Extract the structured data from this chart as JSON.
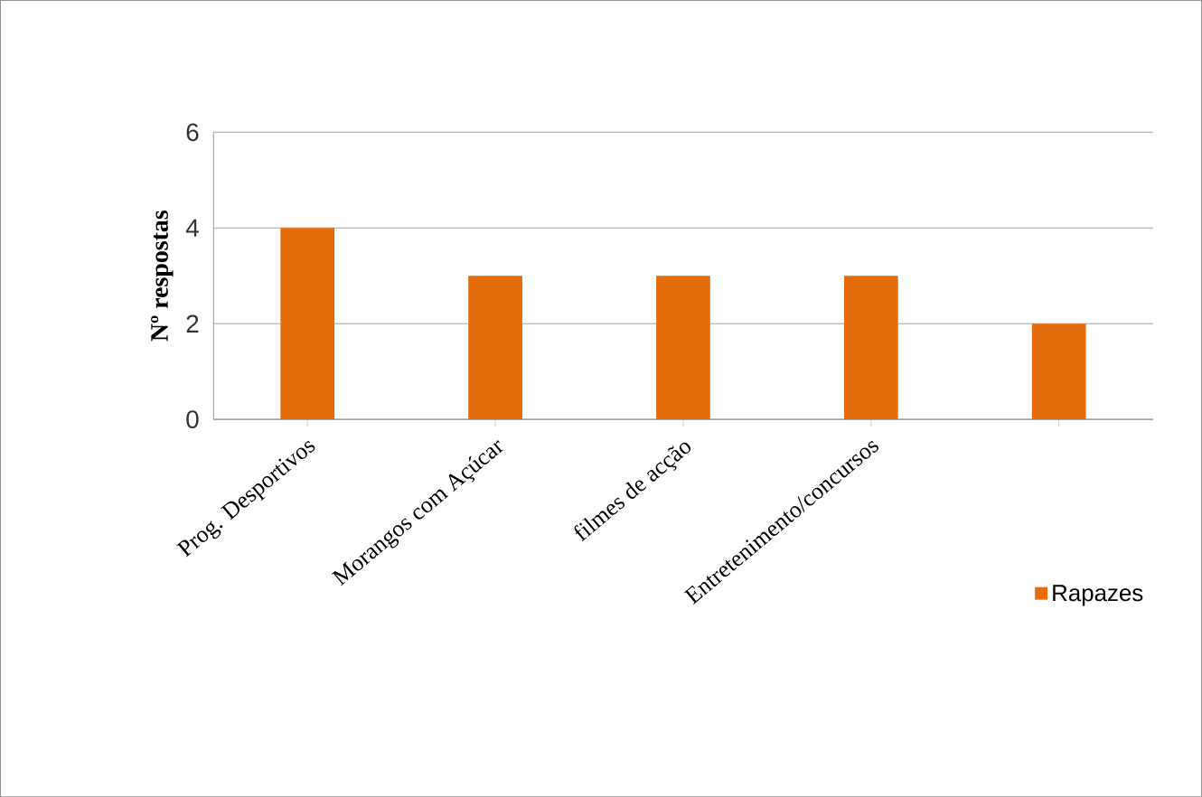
{
  "chart_data": {
    "type": "bar",
    "ylabel": "Nº respostas",
    "categories": [
      "Prog. Desportivos",
      "Morangos com Açúcar",
      "filmes de acção",
      "Entretenimento/concursos",
      null
    ],
    "series": [
      {
        "name": "Rapazes",
        "color": "#e46c0a",
        "values": [
          4,
          3,
          3,
          3,
          2
        ]
      }
    ],
    "ylim": [
      0,
      6
    ],
    "yticks": [
      0,
      2,
      4,
      6
    ],
    "grid": "y",
    "legend": "bottom right"
  }
}
